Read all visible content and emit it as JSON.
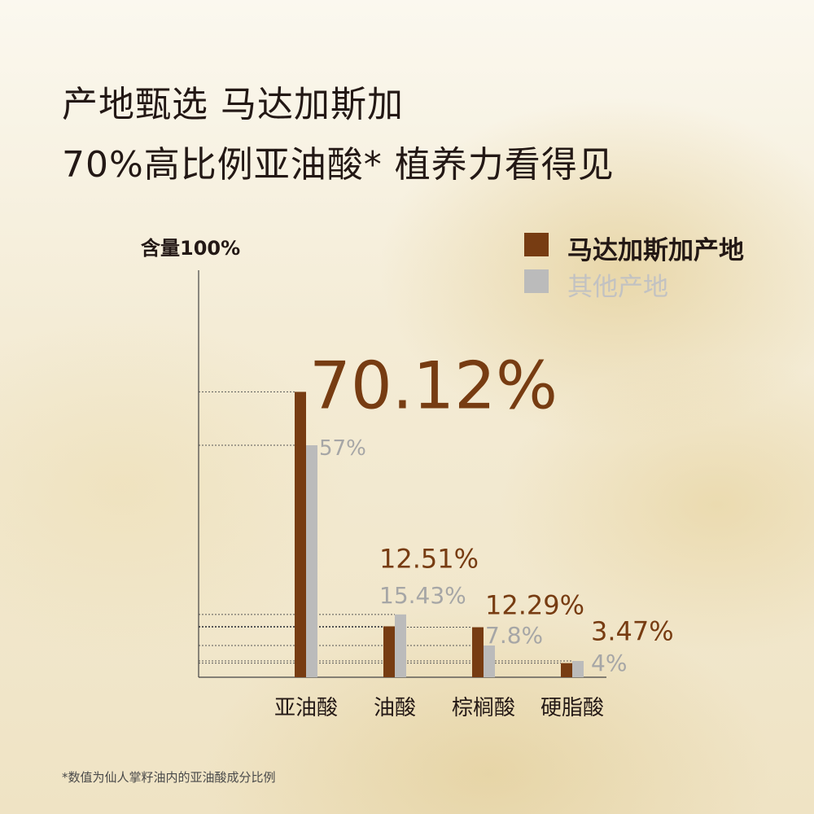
{
  "header": {
    "line1": "产地甄选 马达加斯加",
    "line2": "70%高比例亚油酸* 植养力看得见"
  },
  "footnote": "*数值为仙人掌籽油内的亚油酸成分比例",
  "colors": {
    "madagascar": "#773c12",
    "other": "#bbbbbb",
    "other_text": "#a6a6a6",
    "text": "#231815"
  },
  "chart_data": {
    "type": "bar",
    "ylabel": "含量100%",
    "ylim": [
      0,
      100
    ],
    "grid": false,
    "legend_placement": "top-right",
    "categories": [
      "亚油酸",
      "油酸",
      "棕榈酸",
      "硬脂酸"
    ],
    "series": [
      {
        "name": "马达加斯加产地",
        "values": [
          70.12,
          12.51,
          12.29,
          3.47
        ],
        "labels": [
          "70.12%",
          "12.51%",
          "12.29%",
          "3.47%"
        ]
      },
      {
        "name": "其他产地",
        "values": [
          57,
          15.43,
          7.8,
          4
        ],
        "labels": [
          "57%",
          "15.43%",
          "7.8%",
          "4%"
        ]
      }
    ]
  }
}
